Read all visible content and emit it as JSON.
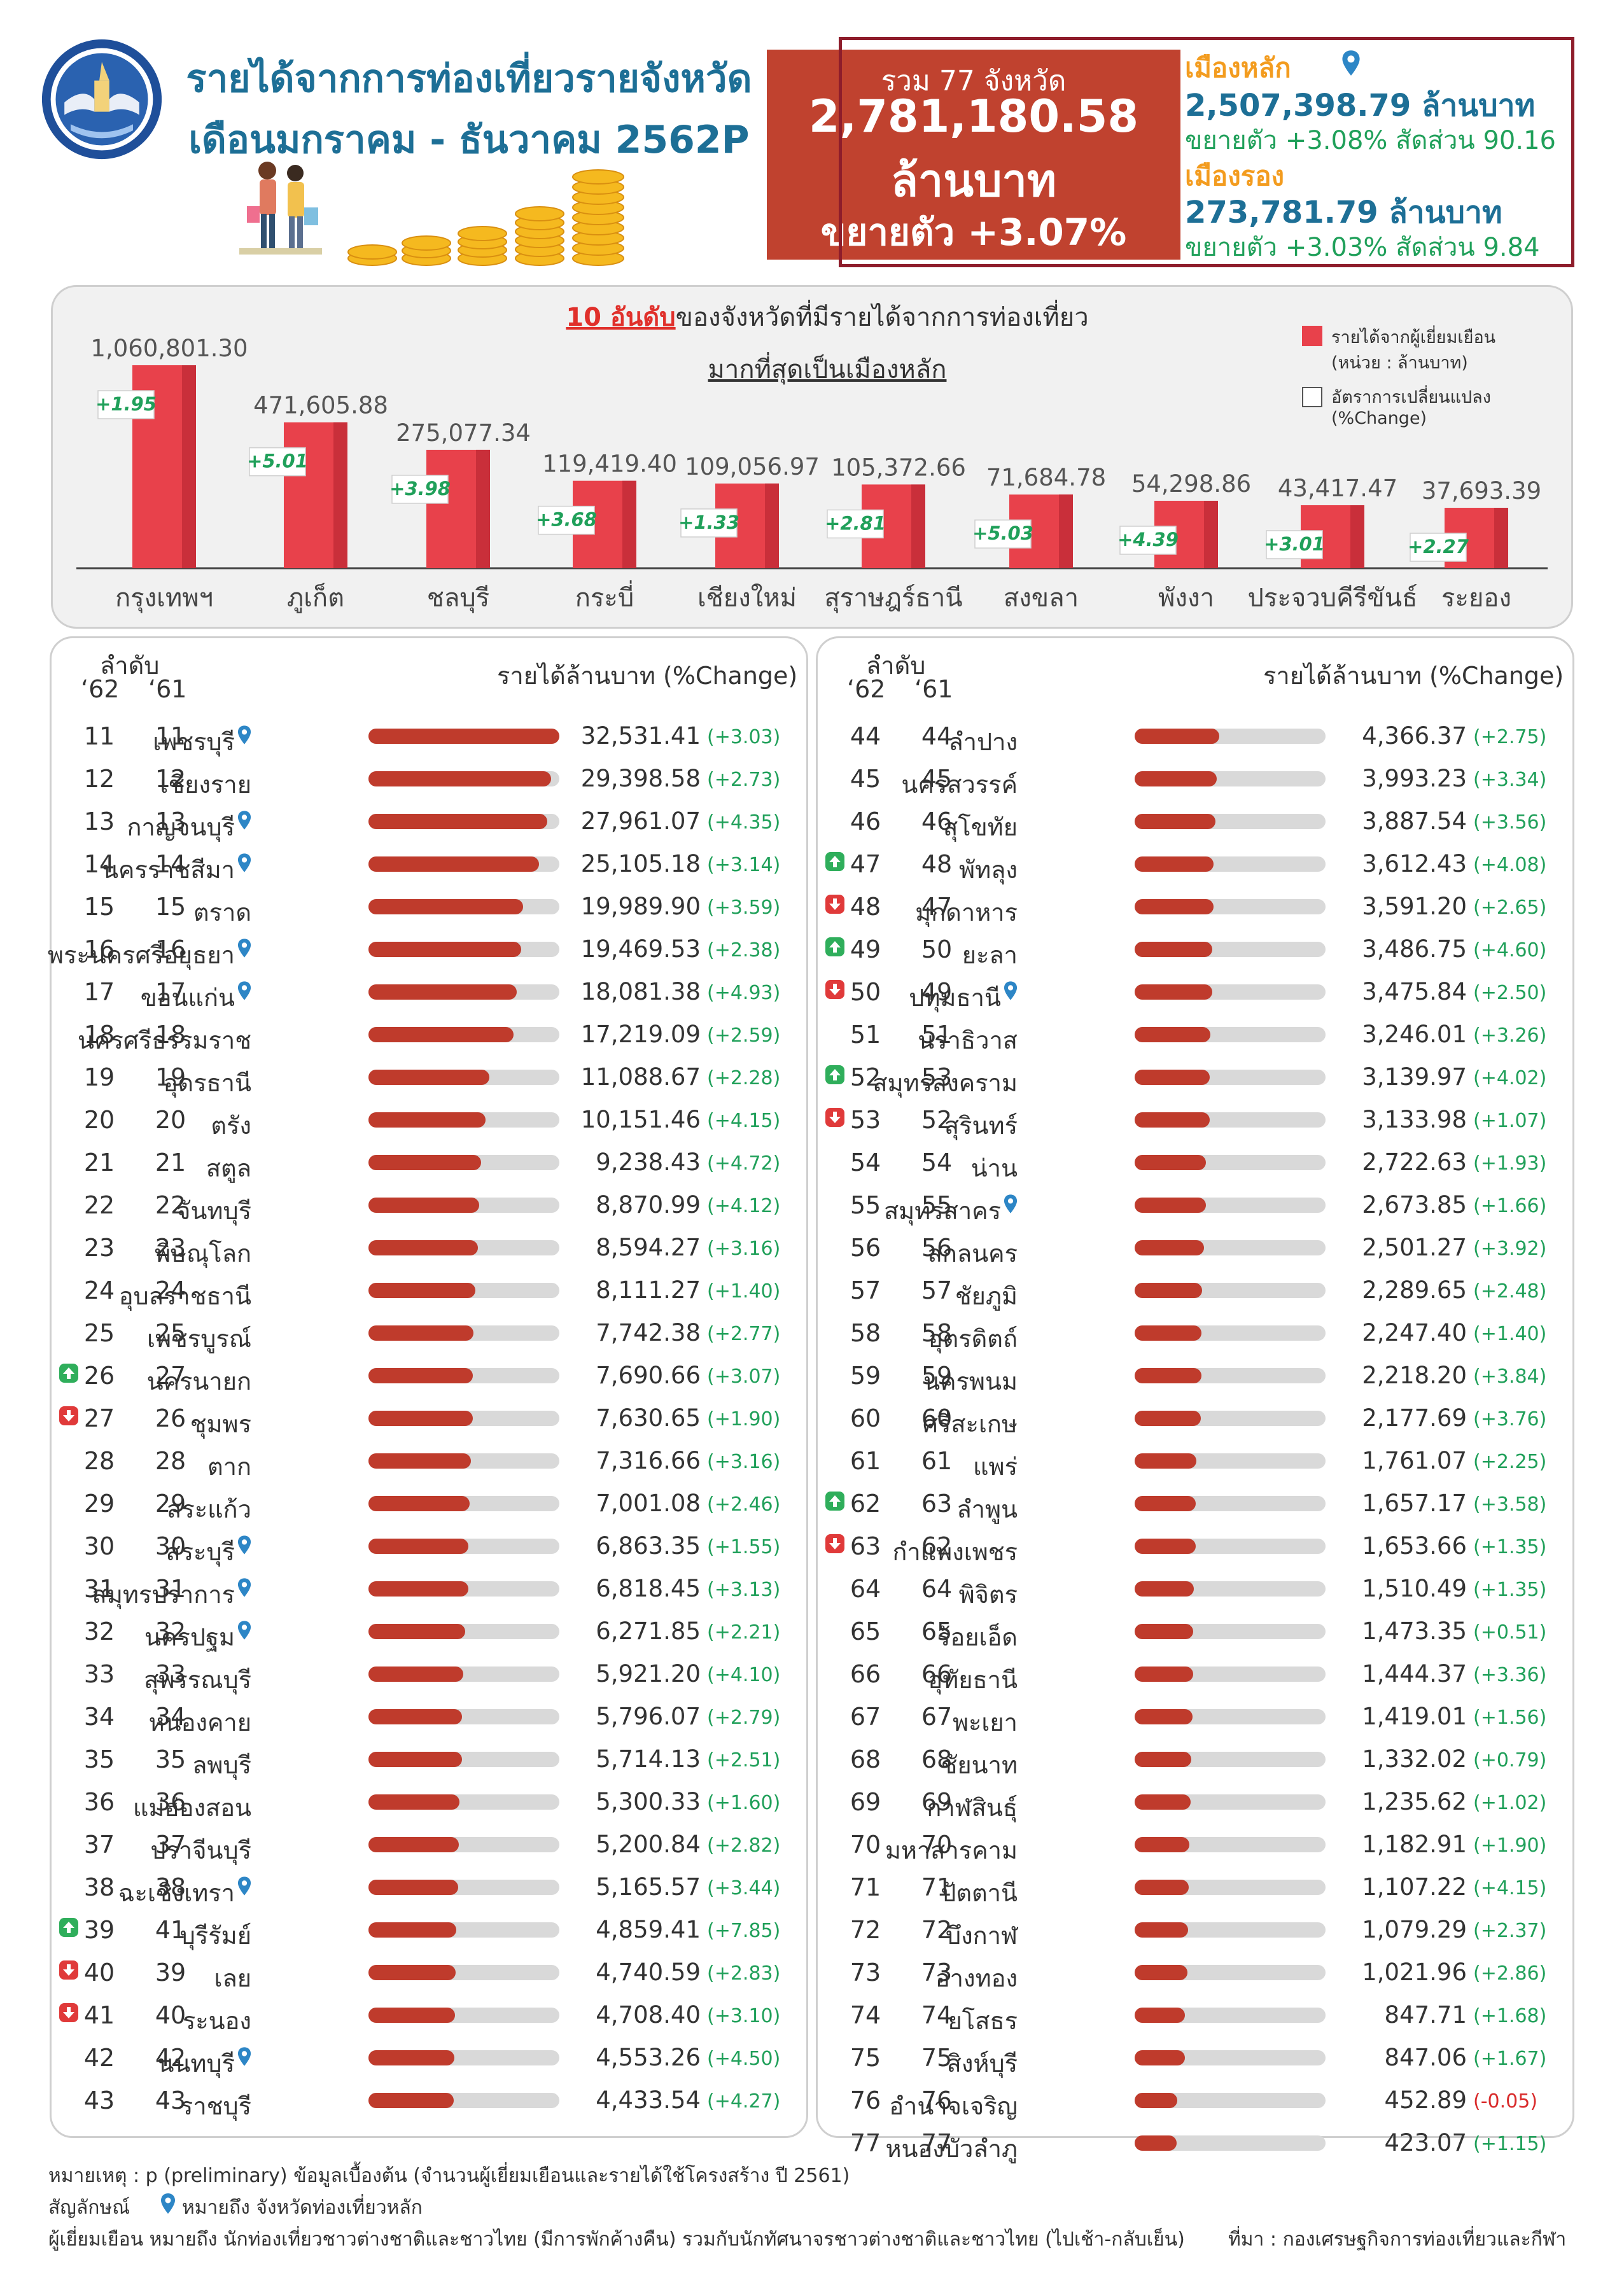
{
  "header": {
    "title1": "รายได้จากการท่องเที่ยวรายจังหวัด",
    "title2": "เดือนมกราคม - ธันวาคม 2562P"
  },
  "total": {
    "label": "รวม 77 จังหวัด",
    "value": "2,781,180.58",
    "unit": "ล้านบาท",
    "growth": "ขยายตัว +3.07%"
  },
  "city": {
    "main_label": "เมืองหลัก",
    "main_value": "2,507,398.79 ล้านบาท",
    "main_growth": "ขยายตัว +3.08% สัดส่วน 90.16",
    "second_label": "เมืองรอง",
    "second_value": "273,781.79 ล้านบาท",
    "second_growth": "ขยายตัว +3.03% สัดส่วน 9.84"
  },
  "colors": {
    "brand_blue": "#1d6f96",
    "accent_orange": "#f39c1f",
    "bar_red": "#e8414b",
    "growth_green": "#20a05a",
    "total_box": "#c0422f"
  },
  "chart_data": {
    "type": "bar",
    "title_highlight": "10 อันดับ",
    "title_rest": "ของจังหวัดที่มีรายได้จากการท่องเที่ยว",
    "subtitle": "มากที่สุดเป็นเมืองหลัก",
    "legend": [
      {
        "name": "รายได้จากผู้เยี่ยมเยือน",
        "sub": "(หน่วย : ล้านบาท)"
      },
      {
        "name": "อัตราการเปลี่ยนแปลง",
        "sub": "(%Change)"
      }
    ],
    "categories": [
      "กรุงเทพฯ",
      "ภูเก็ต",
      "ชลบุรี",
      "กระบี่",
      "เชียงใหม่",
      "สุราษฎร์ธานี",
      "สงขลา",
      "พังงา",
      "ประจวบคีรีขันธ์",
      "ระยอง"
    ],
    "values": [
      1060801.3,
      471605.88,
      275077.34,
      119419.4,
      109056.97,
      105372.66,
      71684.78,
      54298.86,
      43417.47,
      37693.39
    ],
    "value_labels": [
      "1,060,801.30",
      "471,605.88",
      "275,077.34",
      "119,419.40",
      "109,056.97",
      "105,372.66",
      "71,684.78",
      "54,298.86",
      "43,417.47",
      "37,693.39"
    ],
    "changes": [
      "+1.95",
      "+5.01",
      "+3.98",
      "+3.68",
      "+1.33",
      "+2.81",
      "+5.03",
      "+4.39",
      "+3.01",
      "+2.27"
    ]
  },
  "table_header": {
    "rank_label": "ลำดับ",
    "col62": "‘62",
    "col61": "‘61",
    "revenue_label": "รายได้ล้านบาท (%Change)"
  },
  "bar_max": 32531.41,
  "left_rows": [
    {
      "r62": "11",
      "r61": "11",
      "name": "เพชรบุรี",
      "pin": true,
      "arrow": "",
      "value": "32,531.41",
      "num": 32531.41,
      "pct": "(+3.03)"
    },
    {
      "r62": "12",
      "r61": "12",
      "name": "เชียงราย",
      "pin": false,
      "arrow": "",
      "value": "29,398.58",
      "num": 29398.58,
      "pct": "(+2.73)"
    },
    {
      "r62": "13",
      "r61": "13",
      "name": "กาญจนบุรี",
      "pin": true,
      "arrow": "",
      "value": "27,961.07",
      "num": 27961.07,
      "pct": "(+4.35)"
    },
    {
      "r62": "14",
      "r61": "14",
      "name": "นครราชสีมา",
      "pin": true,
      "arrow": "",
      "value": "25,105.18",
      "num": 25105.18,
      "pct": "(+3.14)"
    },
    {
      "r62": "15",
      "r61": "15",
      "name": "ตราด",
      "pin": false,
      "arrow": "",
      "value": "19,989.90",
      "num": 19989.9,
      "pct": "(+3.59)"
    },
    {
      "r62": "16",
      "r61": "16",
      "name": "พระนครศรีอยุธยา",
      "pin": true,
      "arrow": "",
      "value": "19,469.53",
      "num": 19469.53,
      "pct": "(+2.38)"
    },
    {
      "r62": "17",
      "r61": "17",
      "name": "ขอนแก่น",
      "pin": true,
      "arrow": "",
      "value": "18,081.38",
      "num": 18081.38,
      "pct": "(+4.93)"
    },
    {
      "r62": "18",
      "r61": "18",
      "name": "นครศรีธรรมราช",
      "pin": false,
      "arrow": "",
      "value": "17,219.09",
      "num": 17219.09,
      "pct": "(+2.59)"
    },
    {
      "r62": "19",
      "r61": "19",
      "name": "อุดรธานี",
      "pin": false,
      "arrow": "",
      "value": "11,088.67",
      "num": 11088.67,
      "pct": "(+2.28)"
    },
    {
      "r62": "20",
      "r61": "20",
      "name": "ตรัง",
      "pin": false,
      "arrow": "",
      "value": "10,151.46",
      "num": 10151.46,
      "pct": "(+4.15)"
    },
    {
      "r62": "21",
      "r61": "21",
      "name": "สตูล",
      "pin": false,
      "arrow": "",
      "value": "9,238.43",
      "num": 9238.43,
      "pct": "(+4.72)"
    },
    {
      "r62": "22",
      "r61": "22",
      "name": "จันทบุรี",
      "pin": false,
      "arrow": "",
      "value": "8,870.99",
      "num": 8870.99,
      "pct": "(+4.12)"
    },
    {
      "r62": "23",
      "r61": "23",
      "name": "พิษณุโลก",
      "pin": false,
      "arrow": "",
      "value": "8,594.27",
      "num": 8594.27,
      "pct": "(+3.16)"
    },
    {
      "r62": "24",
      "r61": "24",
      "name": "อุบลราชธานี",
      "pin": false,
      "arrow": "",
      "value": "8,111.27",
      "num": 8111.27,
      "pct": "(+1.40)"
    },
    {
      "r62": "25",
      "r61": "25",
      "name": "เพชรบูรณ์",
      "pin": false,
      "arrow": "",
      "value": "7,742.38",
      "num": 7742.38,
      "pct": "(+2.77)"
    },
    {
      "r62": "26",
      "r61": "27",
      "name": "นครนายก",
      "pin": false,
      "arrow": "up",
      "value": "7,690.66",
      "num": 7690.66,
      "pct": "(+3.07)"
    },
    {
      "r62": "27",
      "r61": "26",
      "name": "ชุมพร",
      "pin": false,
      "arrow": "down",
      "value": "7,630.65",
      "num": 7630.65,
      "pct": "(+1.90)"
    },
    {
      "r62": "28",
      "r61": "28",
      "name": "ตาก",
      "pin": false,
      "arrow": "",
      "value": "7,316.66",
      "num": 7316.66,
      "pct": "(+3.16)"
    },
    {
      "r62": "29",
      "r61": "29",
      "name": "สระแก้ว",
      "pin": false,
      "arrow": "",
      "value": "7,001.08",
      "num": 7001.08,
      "pct": "(+2.46)"
    },
    {
      "r62": "30",
      "r61": "30",
      "name": "สระบุรี",
      "pin": true,
      "arrow": "",
      "value": "6,863.35",
      "num": 6863.35,
      "pct": "(+1.55)"
    },
    {
      "r62": "31",
      "r61": "31",
      "name": "สมุทรปราการ",
      "pin": true,
      "arrow": "",
      "value": "6,818.45",
      "num": 6818.45,
      "pct": "(+3.13)"
    },
    {
      "r62": "32",
      "r61": "32",
      "name": "นครปฐม",
      "pin": true,
      "arrow": "",
      "value": "6,271.85",
      "num": 6271.85,
      "pct": "(+2.21)"
    },
    {
      "r62": "33",
      "r61": "33",
      "name": "สุพรรณบุรี",
      "pin": false,
      "arrow": "",
      "value": "5,921.20",
      "num": 5921.2,
      "pct": "(+4.10)"
    },
    {
      "r62": "34",
      "r61": "34",
      "name": "หนองคาย",
      "pin": false,
      "arrow": "",
      "value": "5,796.07",
      "num": 5796.07,
      "pct": "(+2.79)"
    },
    {
      "r62": "35",
      "r61": "35",
      "name": "ลพบุรี",
      "pin": false,
      "arrow": "",
      "value": "5,714.13",
      "num": 5714.13,
      "pct": "(+2.51)"
    },
    {
      "r62": "36",
      "r61": "36",
      "name": "แม่ฮ่องสอน",
      "pin": false,
      "arrow": "",
      "value": "5,300.33",
      "num": 5300.33,
      "pct": "(+1.60)"
    },
    {
      "r62": "37",
      "r61": "37",
      "name": "ปราจีนบุรี",
      "pin": false,
      "arrow": "",
      "value": "5,200.84",
      "num": 5200.84,
      "pct": "(+2.82)"
    },
    {
      "r62": "38",
      "r61": "38",
      "name": "ฉะเชิงเทรา",
      "pin": true,
      "arrow": "",
      "value": "5,165.57",
      "num": 5165.57,
      "pct": "(+3.44)"
    },
    {
      "r62": "39",
      "r61": "41",
      "name": "บุรีรัมย์",
      "pin": false,
      "arrow": "up",
      "value": "4,859.41",
      "num": 4859.41,
      "pct": "(+7.85)"
    },
    {
      "r62": "40",
      "r61": "39",
      "name": "เลย",
      "pin": false,
      "arrow": "down",
      "value": "4,740.59",
      "num": 4740.59,
      "pct": "(+2.83)"
    },
    {
      "r62": "41",
      "r61": "40",
      "name": "ระนอง",
      "pin": false,
      "arrow": "down",
      "value": "4,708.40",
      "num": 4708.4,
      "pct": "(+3.10)"
    },
    {
      "r62": "42",
      "r61": "42",
      "name": "นนทบุรี",
      "pin": true,
      "arrow": "",
      "value": "4,553.26",
      "num": 4553.26,
      "pct": "(+4.50)"
    },
    {
      "r62": "43",
      "r61": "43",
      "name": "ราชบุรี",
      "pin": false,
      "arrow": "",
      "value": "4,433.54",
      "num": 4433.54,
      "pct": "(+4.27)"
    }
  ],
  "right_rows": [
    {
      "r62": "44",
      "r61": "44",
      "name": "ลำปาง",
      "pin": false,
      "arrow": "",
      "value": "4,366.37",
      "num": 4366.37,
      "pct": "(+2.75)"
    },
    {
      "r62": "45",
      "r61": "45",
      "name": "นครสวรรค์",
      "pin": false,
      "arrow": "",
      "value": "3,993.23",
      "num": 3993.23,
      "pct": "(+3.34)"
    },
    {
      "r62": "46",
      "r61": "46",
      "name": "สุโขทัย",
      "pin": false,
      "arrow": "",
      "value": "3,887.54",
      "num": 3887.54,
      "pct": "(+3.56)"
    },
    {
      "r62": "47",
      "r61": "48",
      "name": "พัทลุง",
      "pin": false,
      "arrow": "up",
      "value": "3,612.43",
      "num": 3612.43,
      "pct": "(+4.08)"
    },
    {
      "r62": "48",
      "r61": "47",
      "name": "มุกดาหาร",
      "pin": false,
      "arrow": "down",
      "value": "3,591.20",
      "num": 3591.2,
      "pct": "(+2.65)"
    },
    {
      "r62": "49",
      "r61": "50",
      "name": "ยะลา",
      "pin": false,
      "arrow": "up",
      "value": "3,486.75",
      "num": 3486.75,
      "pct": "(+4.60)"
    },
    {
      "r62": "50",
      "r61": "49",
      "name": "ปทุมธานี",
      "pin": true,
      "arrow": "down",
      "value": "3,475.84",
      "num": 3475.84,
      "pct": "(+2.50)"
    },
    {
      "r62": "51",
      "r61": "51",
      "name": "นราธิวาส",
      "pin": false,
      "arrow": "",
      "value": "3,246.01",
      "num": 3246.01,
      "pct": "(+3.26)"
    },
    {
      "r62": "52",
      "r61": "53",
      "name": "สมุทรสงคราม",
      "pin": false,
      "arrow": "up",
      "value": "3,139.97",
      "num": 3139.97,
      "pct": "(+4.02)"
    },
    {
      "r62": "53",
      "r61": "52",
      "name": "สุรินทร์",
      "pin": false,
      "arrow": "down",
      "value": "3,133.98",
      "num": 3133.98,
      "pct": "(+1.07)"
    },
    {
      "r62": "54",
      "r61": "54",
      "name": "น่าน",
      "pin": false,
      "arrow": "",
      "value": "2,722.63",
      "num": 2722.63,
      "pct": "(+1.93)"
    },
    {
      "r62": "55",
      "r61": "55",
      "name": "สมุทรสาคร",
      "pin": true,
      "arrow": "",
      "value": "2,673.85",
      "num": 2673.85,
      "pct": "(+1.66)"
    },
    {
      "r62": "56",
      "r61": "56",
      "name": "สกลนคร",
      "pin": false,
      "arrow": "",
      "value": "2,501.27",
      "num": 2501.27,
      "pct": "(+3.92)"
    },
    {
      "r62": "57",
      "r61": "57",
      "name": "ชัยภูมิ",
      "pin": false,
      "arrow": "",
      "value": "2,289.65",
      "num": 2289.65,
      "pct": "(+2.48)"
    },
    {
      "r62": "58",
      "r61": "58",
      "name": "อุตรดิตถ์",
      "pin": false,
      "arrow": "",
      "value": "2,247.40",
      "num": 2247.4,
      "pct": "(+1.40)"
    },
    {
      "r62": "59",
      "r61": "59",
      "name": "นครพนม",
      "pin": false,
      "arrow": "",
      "value": "2,218.20",
      "num": 2218.2,
      "pct": "(+3.84)"
    },
    {
      "r62": "60",
      "r61": "60",
      "name": "ศรีสะเกษ",
      "pin": false,
      "arrow": "",
      "value": "2,177.69",
      "num": 2177.69,
      "pct": "(+3.76)"
    },
    {
      "r62": "61",
      "r61": "61",
      "name": "แพร่",
      "pin": false,
      "arrow": "",
      "value": "1,761.07",
      "num": 1761.07,
      "pct": "(+2.25)"
    },
    {
      "r62": "62",
      "r61": "63",
      "name": "ลำพูน",
      "pin": false,
      "arrow": "up",
      "value": "1,657.17",
      "num": 1657.17,
      "pct": "(+3.58)"
    },
    {
      "r62": "63",
      "r61": "62",
      "name": "กำแพงเพชร",
      "pin": false,
      "arrow": "down",
      "value": "1,653.66",
      "num": 1653.66,
      "pct": "(+1.35)"
    },
    {
      "r62": "64",
      "r61": "64",
      "name": "พิจิตร",
      "pin": false,
      "arrow": "",
      "value": "1,510.49",
      "num": 1510.49,
      "pct": "(+1.35)"
    },
    {
      "r62": "65",
      "r61": "65",
      "name": "ร้อยเอ็ด",
      "pin": false,
      "arrow": "",
      "value": "1,473.35",
      "num": 1473.35,
      "pct": "(+0.51)"
    },
    {
      "r62": "66",
      "r61": "66",
      "name": "อุทัยธานี",
      "pin": false,
      "arrow": "",
      "value": "1,444.37",
      "num": 1444.37,
      "pct": "(+3.36)"
    },
    {
      "r62": "67",
      "r61": "67",
      "name": "พะเยา",
      "pin": false,
      "arrow": "",
      "value": "1,419.01",
      "num": 1419.01,
      "pct": "(+1.56)"
    },
    {
      "r62": "68",
      "r61": "68",
      "name": "ชัยนาท",
      "pin": false,
      "arrow": "",
      "value": "1,332.02",
      "num": 1332.02,
      "pct": "(+0.79)"
    },
    {
      "r62": "69",
      "r61": "69",
      "name": "กาฬสินธุ์",
      "pin": false,
      "arrow": "",
      "value": "1,235.62",
      "num": 1235.62,
      "pct": "(+1.02)"
    },
    {
      "r62": "70",
      "r61": "70",
      "name": "มหาสารคาม",
      "pin": false,
      "arrow": "",
      "value": "1,182.91",
      "num": 1182.91,
      "pct": "(+1.90)"
    },
    {
      "r62": "71",
      "r61": "71",
      "name": "ปัตตานี",
      "pin": false,
      "arrow": "",
      "value": "1,107.22",
      "num": 1107.22,
      "pct": "(+4.15)"
    },
    {
      "r62": "72",
      "r61": "72",
      "name": "บึงกาฬ",
      "pin": false,
      "arrow": "",
      "value": "1,079.29",
      "num": 1079.29,
      "pct": "(+2.37)"
    },
    {
      "r62": "73",
      "r61": "73",
      "name": "อ่างทอง",
      "pin": false,
      "arrow": "",
      "value": "1,021.96",
      "num": 1021.96,
      "pct": "(+2.86)"
    },
    {
      "r62": "74",
      "r61": "74",
      "name": "ยโสธร",
      "pin": false,
      "arrow": "",
      "value": "847.71",
      "num": 847.71,
      "pct": "(+1.68)"
    },
    {
      "r62": "75",
      "r61": "75",
      "name": "สิงห์บุรี",
      "pin": false,
      "arrow": "",
      "value": "847.06",
      "num": 847.06,
      "pct": "(+1.67)"
    },
    {
      "r62": "76",
      "r61": "76",
      "name": "อำนาจเจริญ",
      "pin": false,
      "arrow": "",
      "value": "452.89",
      "num": 452.89,
      "pct": "(-0.05)"
    },
    {
      "r62": "77",
      "r61": "77",
      "name": "หนองบัวลำภู",
      "pin": false,
      "arrow": "",
      "value": "423.07",
      "num": 423.07,
      "pct": "(+1.15)"
    }
  ],
  "footer": {
    "note": "หมายเหตุ : p (preliminary) ข้อมูลเบื้องต้น (จำนวนผู้เยี่ยมเยือนและรายได้ใช้โครงสร้าง ปี 2561)",
    "symbol_prefix": "สัญลักษณ์",
    "symbol_text": "หมายถึง จังหวัดท่องเที่ยวหลัก",
    "visitor_def": "ผู้เยี่ยมเยือน หมายถึง นักท่องเที่ยวชาวต่างชาติและชาวไทย (มีการพักค้างคืน) รวมกับนักทัศนาจรชาวต่างชาติและชาวไทย (ไปเช้า-กลับเย็น)",
    "source": "ที่มา :   กองเศรษฐกิจการท่องเที่ยวและกีฬา"
  }
}
